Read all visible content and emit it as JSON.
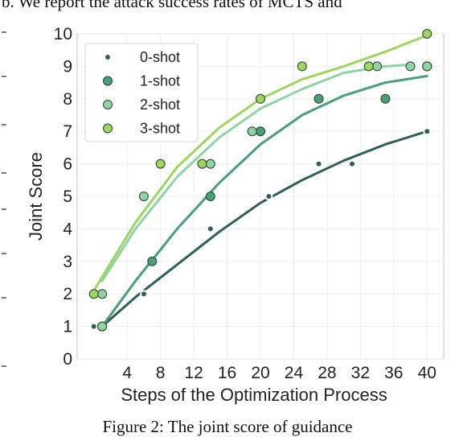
{
  "page": {
    "header_text": "b. We report the attack success rates of MCTS and",
    "caption": "Figure 2: The joint score of guidance"
  },
  "chart_data": {
    "type": "scatter",
    "title": "",
    "xlabel": "Steps of the Optimization Process",
    "ylabel": "Joint Score",
    "xlim": [
      -2,
      42
    ],
    "ylim": [
      0,
      10
    ],
    "xticks": [
      4,
      8,
      12,
      16,
      20,
      24,
      28,
      32,
      36,
      40
    ],
    "yticks": [
      0,
      1,
      2,
      3,
      4,
      5,
      6,
      7,
      8,
      9,
      10
    ],
    "grid": true,
    "legend_position": "top-left",
    "series": [
      {
        "name": "0-shot",
        "color": "#2f5f5a",
        "marker": "star",
        "points": [
          [
            0,
            1
          ],
          [
            6,
            2
          ],
          [
            14,
            4
          ],
          [
            21,
            5
          ],
          [
            27,
            6
          ],
          [
            31,
            6
          ],
          [
            40,
            7
          ]
        ],
        "trend": [
          [
            1,
            1.0
          ],
          [
            5,
            1.9
          ],
          [
            10,
            2.9
          ],
          [
            15,
            3.9
          ],
          [
            20,
            4.8
          ],
          [
            25,
            5.5
          ],
          [
            30,
            6.1
          ],
          [
            35,
            6.6
          ],
          [
            40,
            7.0
          ]
        ]
      },
      {
        "name": "1-shot",
        "color": "#4a9e78",
        "marker": "circle",
        "points": [
          [
            1,
            1
          ],
          [
            7,
            3
          ],
          [
            14,
            5
          ],
          [
            20,
            7
          ],
          [
            27,
            8
          ],
          [
            35,
            8
          ],
          [
            40,
            9
          ]
        ],
        "trend": [
          [
            1,
            1.0
          ],
          [
            5,
            2.4
          ],
          [
            10,
            4.0
          ],
          [
            15,
            5.4
          ],
          [
            20,
            6.6
          ],
          [
            25,
            7.5
          ],
          [
            30,
            8.1
          ],
          [
            35,
            8.5
          ],
          [
            40,
            8.7
          ]
        ]
      },
      {
        "name": "2-shot",
        "color": "#8ed4a4",
        "marker": "circle",
        "points": [
          [
            1,
            2
          ],
          [
            1,
            1
          ],
          [
            6,
            5
          ],
          [
            14,
            6
          ],
          [
            19,
            7
          ],
          [
            34,
            9
          ],
          [
            38,
            9
          ],
          [
            40,
            9
          ]
        ],
        "trend": [
          [
            1,
            2.4
          ],
          [
            5,
            4.0
          ],
          [
            10,
            5.6
          ],
          [
            15,
            6.8
          ],
          [
            20,
            7.7
          ],
          [
            25,
            8.3
          ],
          [
            30,
            8.8
          ],
          [
            35,
            9.0
          ],
          [
            38,
            9.05
          ]
        ]
      },
      {
        "name": "3-shot",
        "color": "#9cd65e",
        "marker": "circle",
        "points": [
          [
            0,
            2
          ],
          [
            8,
            6
          ],
          [
            13,
            6
          ],
          [
            20,
            8
          ],
          [
            25,
            9
          ],
          [
            33,
            9
          ],
          [
            40,
            10
          ]
        ],
        "trend": [
          [
            0,
            2.1
          ],
          [
            5,
            4.2
          ],
          [
            10,
            5.9
          ],
          [
            15,
            7.1
          ],
          [
            20,
            8.0
          ],
          [
            25,
            8.6
          ],
          [
            30,
            9.0
          ],
          [
            35,
            9.45
          ],
          [
            40,
            9.95
          ]
        ]
      }
    ]
  }
}
